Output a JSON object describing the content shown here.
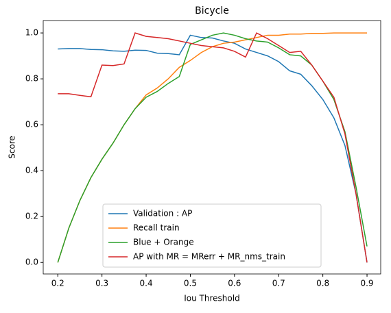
{
  "chart_data": {
    "type": "line",
    "title": "Bicycle",
    "xlabel": "Iou Threshold",
    "ylabel": "Score",
    "x": [
      0.2,
      0.225,
      0.25,
      0.275,
      0.3,
      0.325,
      0.35,
      0.375,
      0.4,
      0.425,
      0.45,
      0.475,
      0.5,
      0.525,
      0.55,
      0.575,
      0.6,
      0.625,
      0.65,
      0.675,
      0.7,
      0.725,
      0.75,
      0.775,
      0.8,
      0.825,
      0.85,
      0.875,
      0.9
    ],
    "series": [
      {
        "name": "Validation : AP",
        "color": "#1f77b4",
        "values": [
          0.93,
          0.932,
          0.932,
          0.928,
          0.927,
          0.922,
          0.92,
          0.925,
          0.924,
          0.912,
          0.91,
          0.905,
          0.99,
          0.98,
          0.978,
          0.965,
          0.955,
          0.93,
          0.915,
          0.9,
          0.875,
          0.835,
          0.82,
          0.77,
          0.71,
          0.63,
          0.51,
          0.3,
          0.0
        ]
      },
      {
        "name": "Recall train",
        "color": "#ff7f0e",
        "values": [
          0.0,
          0.15,
          0.27,
          0.37,
          0.45,
          0.52,
          0.6,
          0.67,
          0.73,
          0.76,
          0.8,
          0.85,
          0.88,
          0.915,
          0.94,
          0.955,
          0.96,
          0.97,
          0.98,
          0.99,
          0.99,
          0.995,
          0.995,
          0.998,
          0.998,
          1.0,
          1.0,
          1.0,
          1.0
        ]
      },
      {
        "name": "Blue + Orange",
        "color": "#2ca02c",
        "values": [
          0.0,
          0.15,
          0.27,
          0.37,
          0.45,
          0.52,
          0.6,
          0.67,
          0.72,
          0.745,
          0.78,
          0.81,
          0.95,
          0.97,
          0.99,
          1.0,
          0.99,
          0.975,
          0.965,
          0.96,
          0.935,
          0.905,
          0.9,
          0.86,
          0.79,
          0.71,
          0.57,
          0.33,
          0.07
        ]
      },
      {
        "name": "AP with MR = MRerr + MR_nms_train",
        "color": "#d62728",
        "values": [
          0.735,
          0.735,
          0.728,
          0.722,
          0.86,
          0.858,
          0.865,
          1.0,
          0.985,
          0.98,
          0.975,
          0.965,
          0.955,
          0.945,
          0.94,
          0.935,
          0.92,
          0.895,
          1.0,
          0.975,
          0.945,
          0.915,
          0.92,
          0.86,
          0.79,
          0.72,
          0.56,
          0.3,
          0.0
        ]
      }
    ],
    "xlim": [
      0.167,
      0.931
    ],
    "ylim": [
      -0.05,
      1.054
    ],
    "xticks": [
      0.2,
      0.3,
      0.4,
      0.5,
      0.6,
      0.7,
      0.8,
      0.9
    ],
    "yticks": [
      {
        "value": 0,
        "label": "0.0"
      },
      0.2,
      0.4,
      0.6,
      0.8,
      {
        "value": 1,
        "label": "1.0"
      }
    ],
    "legend": "lower center"
  }
}
